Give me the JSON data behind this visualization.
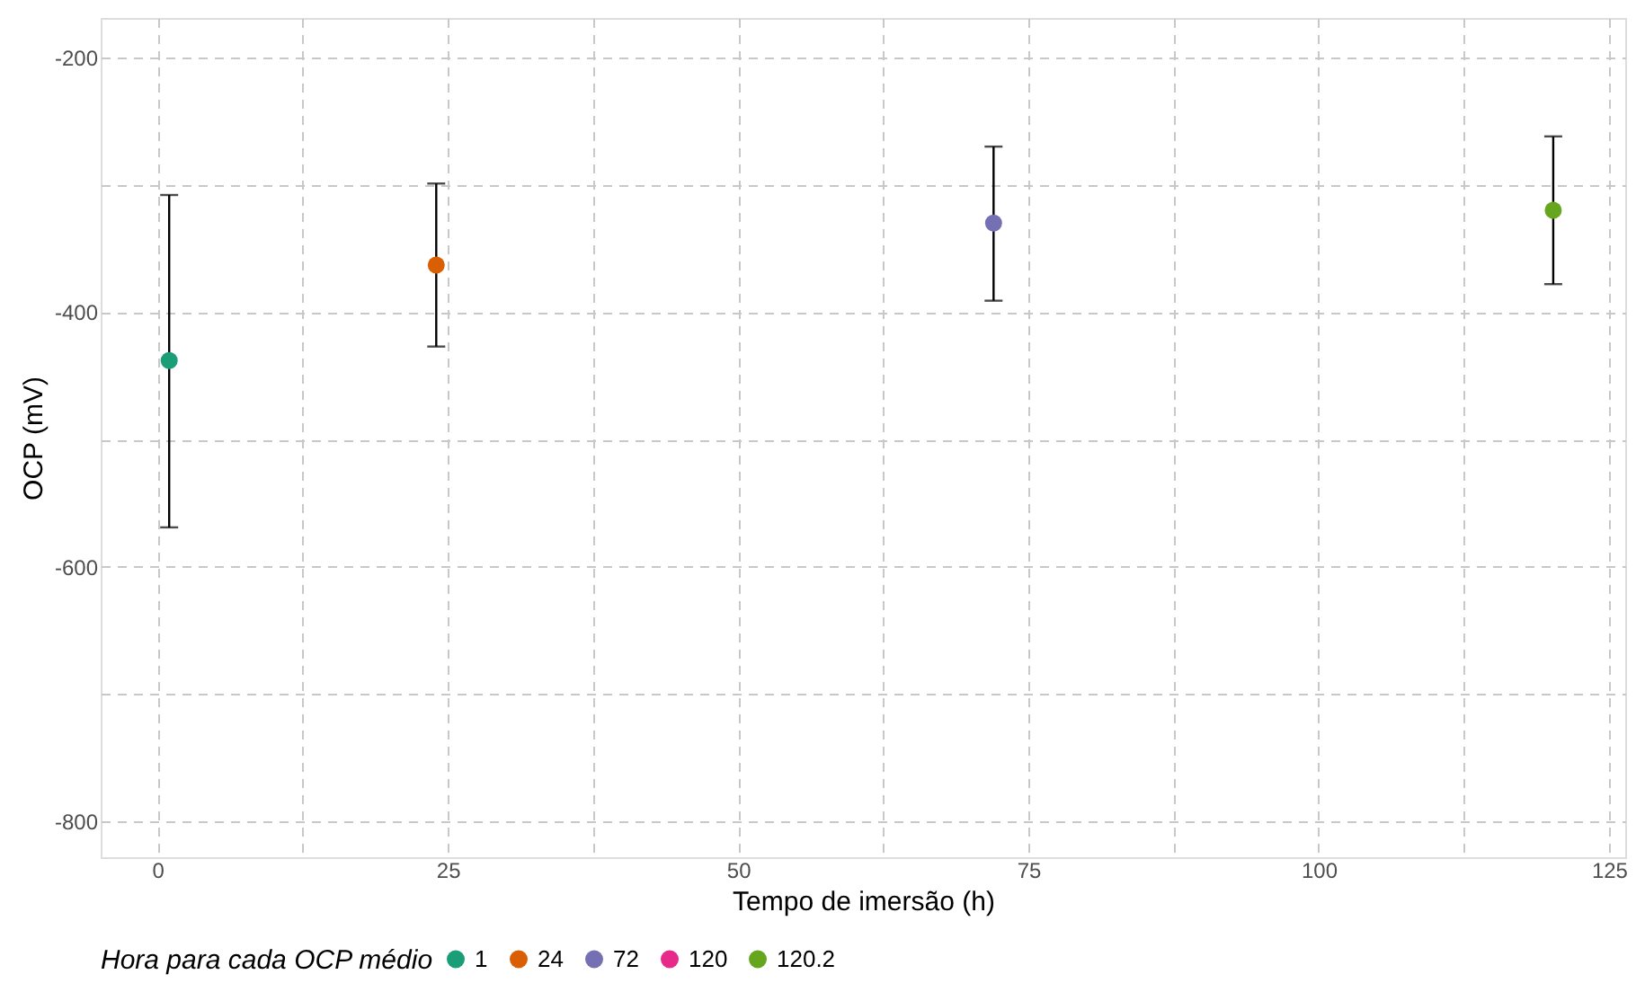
{
  "chart_data": {
    "type": "scatter",
    "xlabel": "Tempo de imersão (h)",
    "ylabel": "OCP (mV)",
    "legend_title": "Hora para cada OCP médio",
    "series": [
      {
        "name": "1",
        "color": "#1b9e77",
        "x": [
          1
        ],
        "values": [
          -438
        ],
        "errors": [
          [
            -569,
            -308
          ]
        ]
      },
      {
        "name": "24",
        "color": "#d95f02",
        "x": [
          24
        ],
        "values": [
          -363
        ],
        "errors": [
          [
            -427,
            -299
          ]
        ]
      },
      {
        "name": "72",
        "color": "#7570b3",
        "x": [
          72
        ],
        "values": [
          -330
        ],
        "errors": [
          [
            -391,
            -270
          ]
        ]
      },
      {
        "name": "120",
        "color": "#e7298a"
      },
      {
        "name": "120.2",
        "color": "#66a61e",
        "x": [
          120.2
        ],
        "values": [
          -320
        ],
        "errors": [
          [
            -378,
            -262
          ]
        ]
      }
    ],
    "xlim": [
      -4.9,
      126.4
    ],
    "xticks": [
      0,
      {
        "value": 12.5,
        "label": null
      },
      25,
      {
        "value": 37.5,
        "label": null
      },
      50,
      {
        "value": 62.5,
        "label": null
      },
      75,
      {
        "value": 87.5,
        "label": null
      },
      100,
      {
        "value": 112.5,
        "label": null
      },
      125
    ],
    "ylim": [
      -828,
      -169
    ],
    "yticks": [
      -800,
      {
        "value": -700,
        "label": null
      },
      -600,
      {
        "value": -500,
        "label": null
      },
      -400,
      {
        "value": -300,
        "label": null
      },
      -200
    ],
    "grid": true,
    "legend": "bottom",
    "marker": "circle"
  }
}
